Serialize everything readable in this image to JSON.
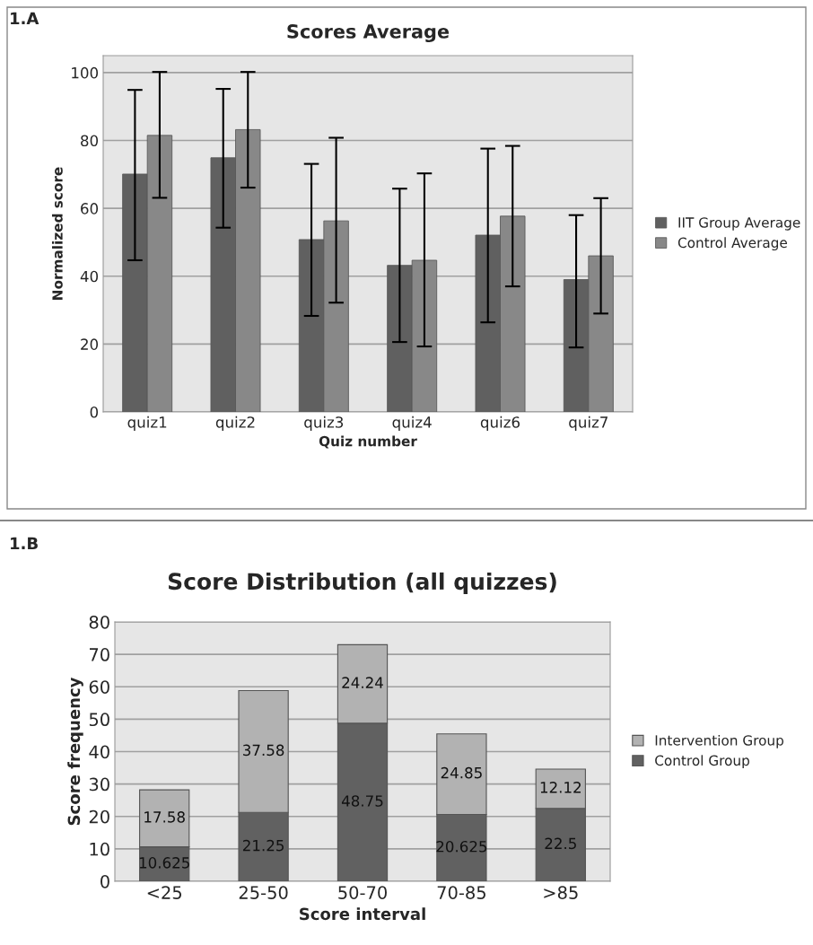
{
  "chart_data": [
    {
      "type": "bar",
      "title": "Scores Average",
      "xlabel": "Quiz number",
      "ylabel": "Normalized score",
      "categories": [
        "quiz1",
        "quiz2",
        "quiz3",
        "quiz4",
        "quiz6",
        "quiz7"
      ],
      "series": [
        {
          "name": "IIT Group Average",
          "color": "#606060",
          "values": [
            70.1,
            74.9,
            50.8,
            43.2,
            52.1,
            39
          ],
          "errors": [
            [
              44.7,
              94.9
            ],
            [
              54.3,
              95.2
            ],
            [
              28.3,
              73.1
            ],
            [
              20.6,
              65.8
            ],
            [
              26.4,
              77.6
            ],
            [
              19,
              58
            ]
          ]
        },
        {
          "name": "Control Average",
          "color": "#888888",
          "values": [
            81.5,
            83.2,
            56.3,
            44.7,
            57.7,
            46
          ],
          "errors": [
            [
              63.1,
              100.2
            ],
            [
              66.1,
              100.2
            ],
            [
              32.2,
              80.8
            ],
            [
              19.3,
              70.3
            ],
            [
              37,
              78.4
            ],
            [
              29,
              63
            ]
          ]
        }
      ],
      "ylim": [
        0,
        105
      ],
      "yticks": [
        0,
        20,
        40,
        60,
        80,
        100
      ],
      "grid": "y",
      "legend": "right",
      "annotations": [
        "1.A"
      ]
    },
    {
      "type": "bar",
      "title": "Score Distribution (all quizzes)",
      "xlabel": "Score interval",
      "ylabel": "Score frequency",
      "categories": [
        "<25",
        "25-50",
        "50-70",
        "70-85",
        ">85"
      ],
      "stacked": true,
      "series": [
        {
          "name": "Control Group",
          "color": "#616161",
          "values": [
            10.625,
            21.25,
            48.75,
            20.625,
            22.5
          ]
        },
        {
          "name": "Intervention Group",
          "color": "#b2b2b2",
          "values": [
            17.58,
            37.58,
            24.24,
            24.85,
            12.12
          ]
        }
      ],
      "ylim": [
        0,
        80
      ],
      "yticks": [
        0,
        10,
        20,
        30,
        40,
        50,
        60,
        70,
        80
      ],
      "grid": "y",
      "legend": "right",
      "data_labels": true,
      "annotations": [
        "1.B"
      ]
    }
  ]
}
